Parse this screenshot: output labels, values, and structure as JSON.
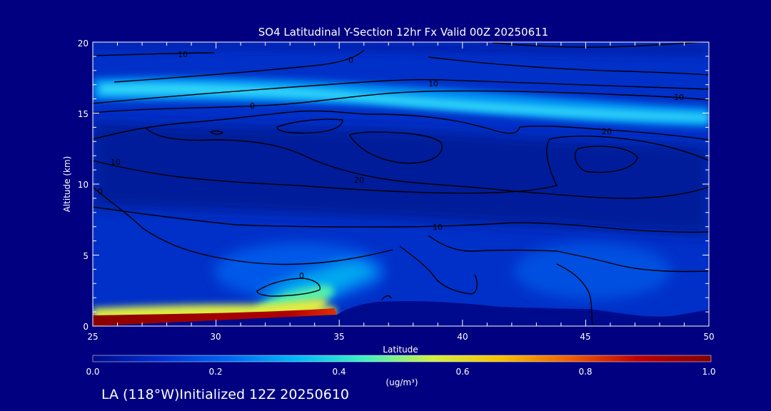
{
  "footer": "LA (118°W)Initialized 12Z 20250610",
  "chart_data": {
    "type": "heatmap",
    "title": "SO4 Latitudinal Y-Section 12hr  Fx Valid 00Z 20250611",
    "xlabel": "Latitude",
    "ylabel": "Altitude (km)",
    "xlim": [
      25,
      50
    ],
    "ylim": [
      0,
      20
    ],
    "xticks": [
      "25",
      "30",
      "35",
      "40",
      "45",
      "50"
    ],
    "yticks": [
      "0",
      "5",
      "10",
      "15",
      "20"
    ],
    "colorbar": {
      "label": "(ug/m³)",
      "range": [
        0.0,
        1.0
      ],
      "ticks": [
        "0.0",
        "0.2",
        "0.4",
        "0.6",
        "0.8",
        "1.0"
      ],
      "colors": [
        "#000a8c",
        "#0030d0",
        "#0068f0",
        "#00b8f8",
        "#40f0c0",
        "#d0f040",
        "#f8c000",
        "#f06000",
        "#c00000",
        "#800000"
      ]
    },
    "background_value": 0.05,
    "concentration_features": [
      {
        "x": [
          25,
          50
        ],
        "y": [
          17.2,
          14.2
        ],
        "value": 0.35,
        "note": "upper band"
      },
      {
        "x": [
          25,
          35
        ],
        "y": [
          0.3,
          0.7
        ],
        "value": 1.0,
        "note": "surface layer"
      },
      {
        "x": [
          29,
          36
        ],
        "y": [
          1.5,
          3.0
        ],
        "value": 0.55,
        "note": "plume"
      }
    ],
    "contour_labels": [
      "10",
      "0",
      "10",
      "10",
      "0",
      "20",
      "10",
      "0",
      "20",
      "10",
      "0"
    ],
    "terrain": [
      {
        "x": 25,
        "y": 0
      },
      {
        "x": 35,
        "y": 0.8
      },
      {
        "x": 36,
        "y": 1.6
      },
      {
        "x": 38,
        "y": 1.7
      },
      {
        "x": 42,
        "y": 1.3
      },
      {
        "x": 45,
        "y": 1.2
      },
      {
        "x": 47.5,
        "y": 0.5
      },
      {
        "x": 50,
        "y": 1.1
      }
    ]
  }
}
